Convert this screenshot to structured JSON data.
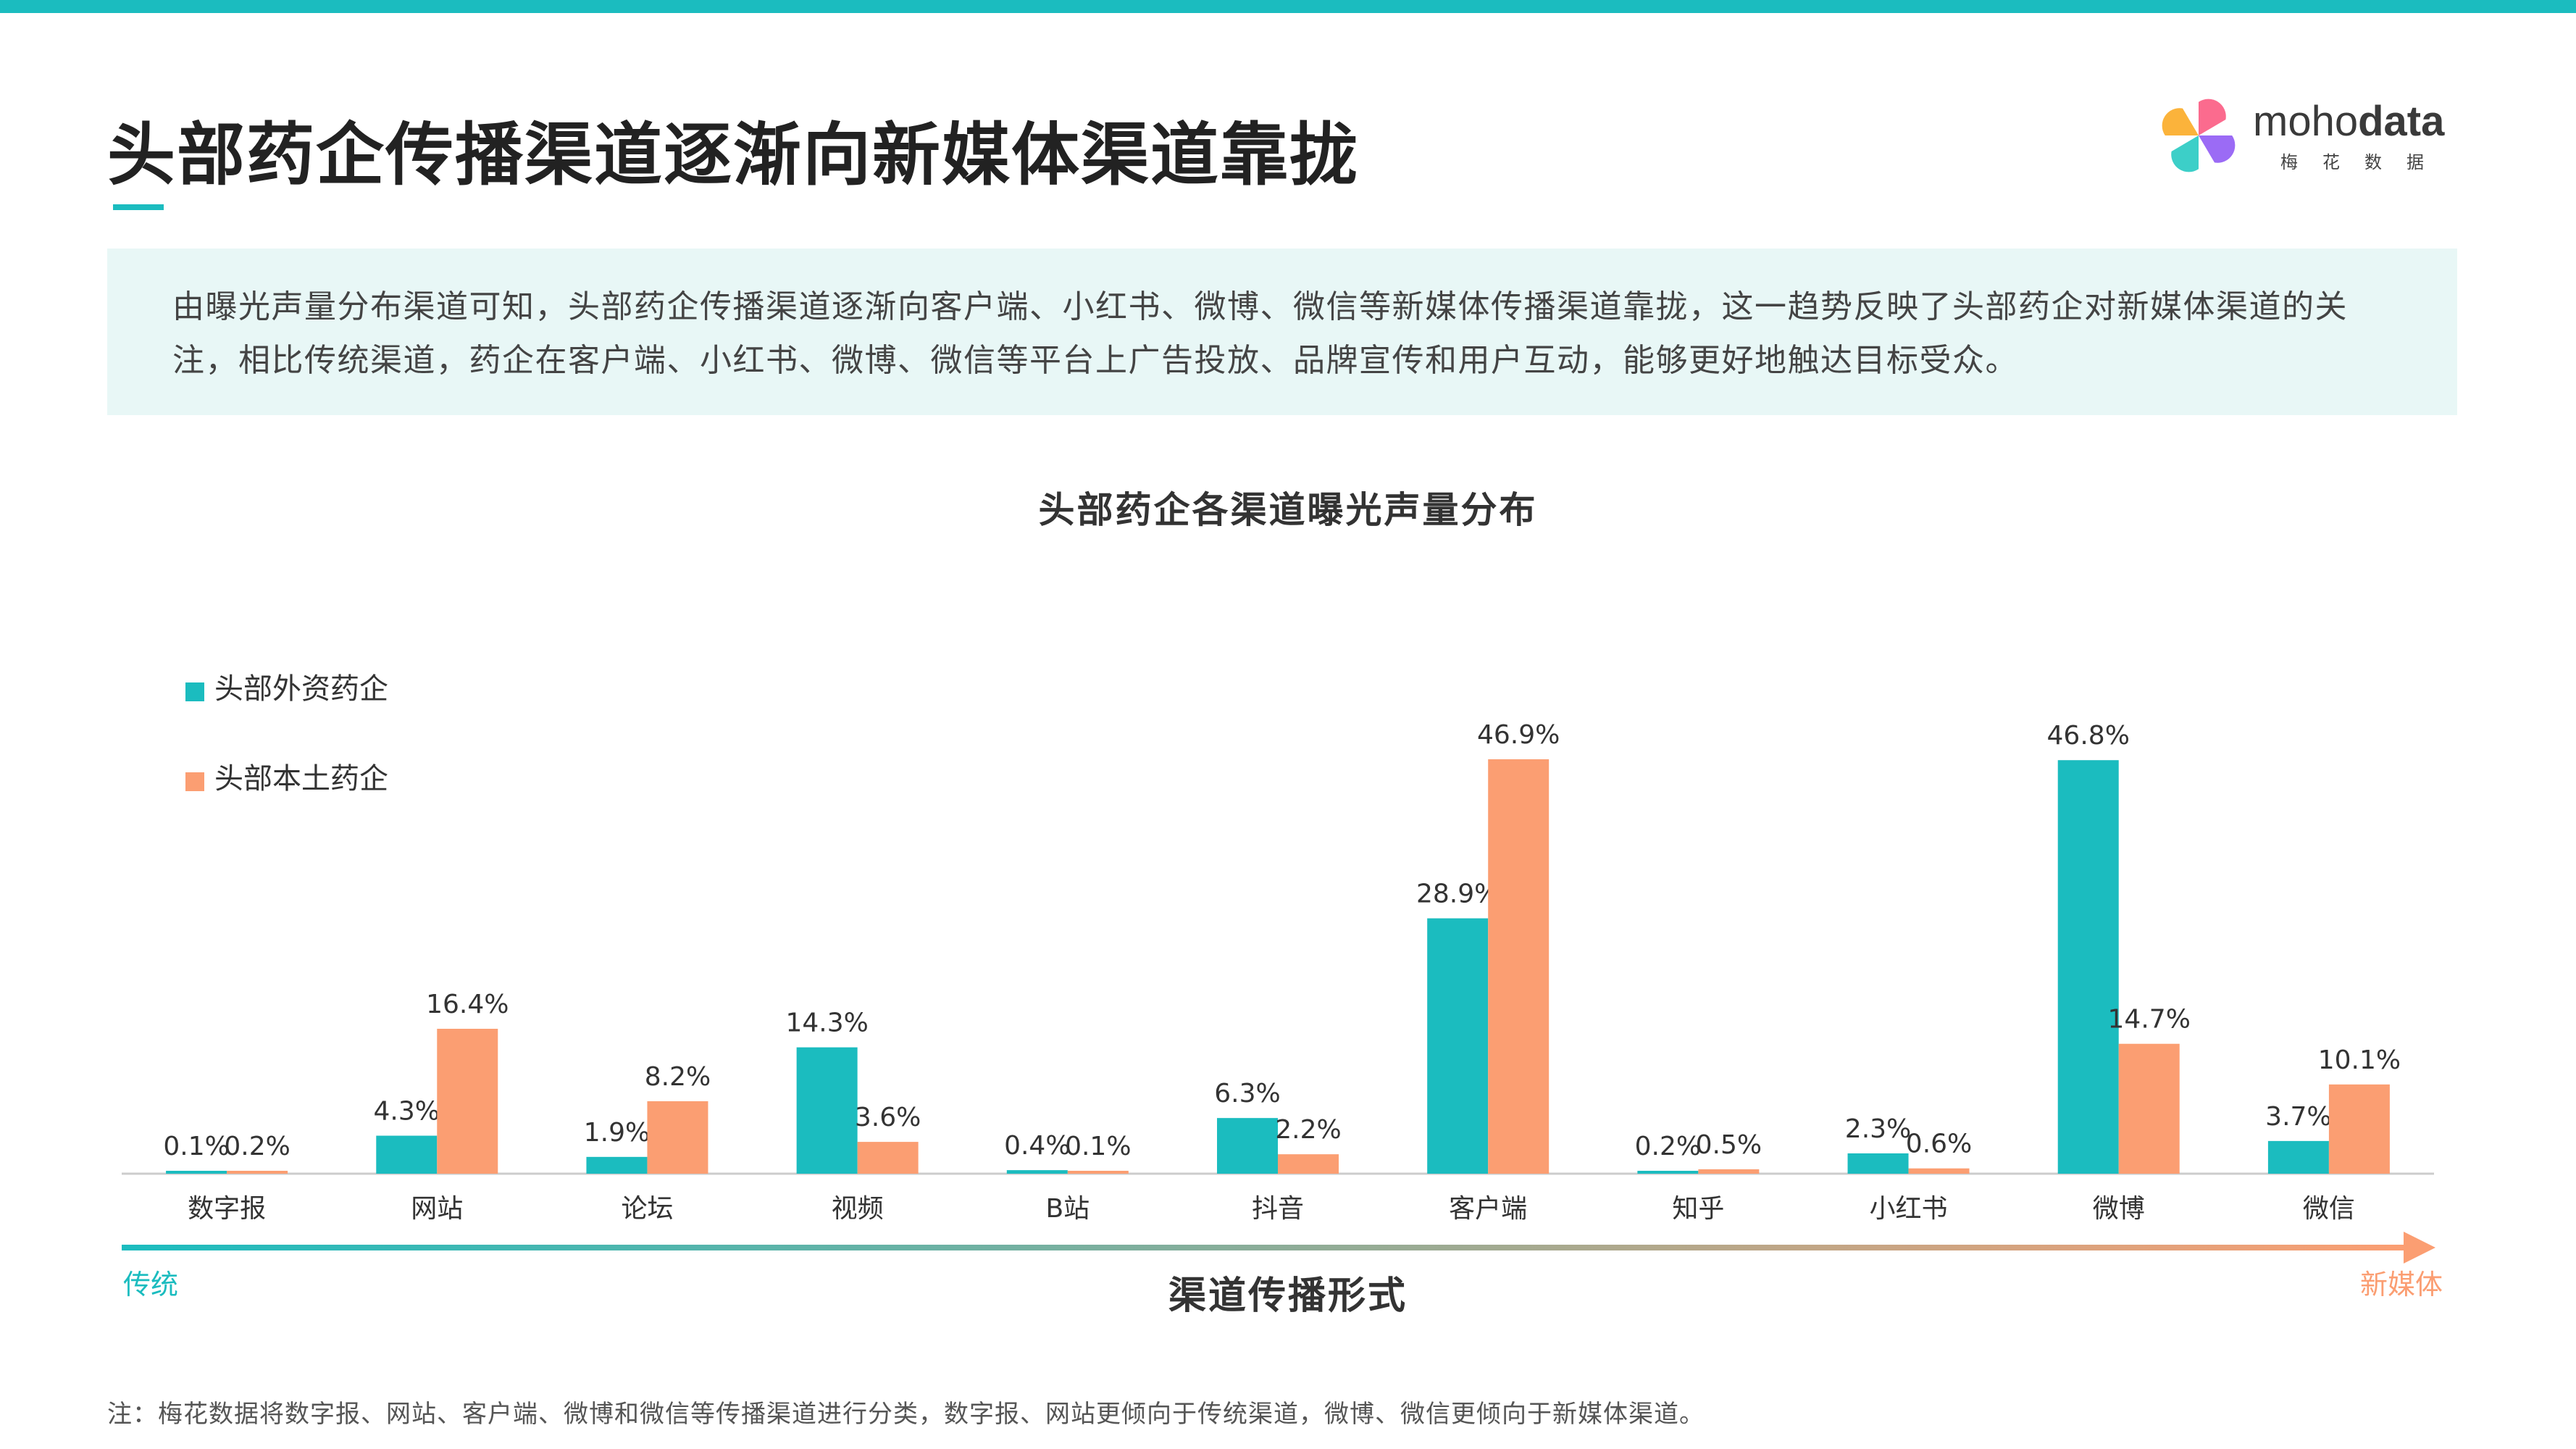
{
  "header": {
    "title": "头部药企传播渠道逐渐向新媒体渠道靠拢"
  },
  "logo": {
    "text_regular": "moho",
    "text_bold": "data",
    "subtitle": "梅花数据"
  },
  "summary": {
    "text": "由曝光声量分布渠道可知，头部药企传播渠道逐渐向客户端、小红书、微博、微信等新媒体传播渠道靠拢，这一趋势反映了头部药企对新媒体渠道的关注，相比传统渠道，药企在客户端、小红书、微博、微信等平台上广告投放、品牌宣传和用户互动，能够更好地触达目标受众。"
  },
  "chart_data": {
    "type": "bar",
    "title": "头部药企各渠道曝光声量分布",
    "xlabel": "渠道传播形式",
    "ylabel": "",
    "ylim": [
      0,
      50
    ],
    "grid": false,
    "legend_position": "top-left",
    "categories": [
      "数字报",
      "网站",
      "论坛",
      "视频",
      "B站",
      "抖音",
      "客户端",
      "知乎",
      "小红书",
      "微博",
      "微信"
    ],
    "series": [
      {
        "name": "头部外资药企",
        "color": "#1bbcbf",
        "values": [
          0.1,
          4.3,
          1.9,
          14.3,
          0.4,
          6.3,
          28.9,
          0.2,
          2.3,
          46.8,
          3.7
        ],
        "labels": [
          "0.1%",
          "4.3%",
          "1.9%",
          "14.3%",
          "0.4%",
          "6.3%",
          "28.9%",
          "0.2%",
          "2.3%",
          "46.8%",
          "3.7%"
        ]
      },
      {
        "name": "头部本土药企",
        "color": "#fb9e72",
        "values": [
          0.2,
          16.4,
          8.2,
          3.6,
          0.1,
          2.2,
          46.9,
          0.5,
          0.6,
          14.7,
          10.1
        ],
        "labels": [
          "0.2%",
          "16.4%",
          "8.2%",
          "3.6%",
          "0.1%",
          "2.2%",
          "46.9%",
          "0.5%",
          "0.6%",
          "14.7%",
          "10.1%"
        ]
      }
    ],
    "arrow": {
      "start_label": "传统",
      "end_label": "新媒体",
      "start_color": "#1bbcbf",
      "end_color": "#fb9e72"
    }
  },
  "footnote": "注：梅花数据将数字报、网站、客户端、微博和微信等传播渠道进行分类，数字报、网站更倾向于传统渠道，微博、微信更倾向于新媒体渠道。"
}
